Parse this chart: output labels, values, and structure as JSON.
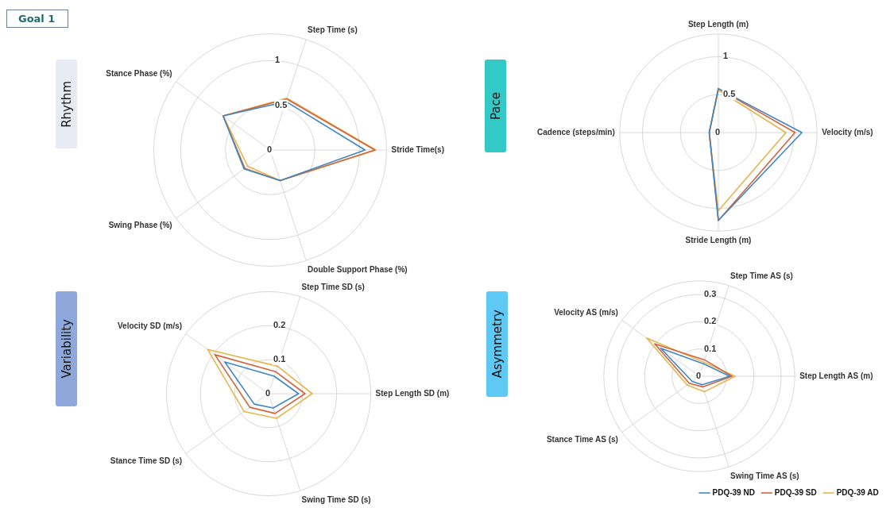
{
  "chart_data": [
    {
      "type": "radar",
      "title": "Rhythm",
      "annotations": [
        "Goal 1"
      ],
      "categories": [
        "Step Time (s)",
        "Stride Time(s)",
        "Double Support Phase (%)",
        "Swing Phase (%)",
        "Stance Phase (%)"
      ],
      "series": [
        {
          "color": "#3f87c4",
          "values": [
            0.57,
            1.06,
            0.36,
            0.36,
            0.65
          ]
        },
        {
          "color": "#d2643c",
          "values": [
            0.6,
            1.17,
            0.36,
            0.35,
            0.65
          ]
        },
        {
          "color": "#e9b44c",
          "values": [
            0.61,
            1.18,
            0.36,
            0.31,
            0.65
          ]
        }
      ],
      "ylim": [
        0,
        1.3
      ],
      "yticks": [
        0,
        0.5,
        1
      ],
      "grid": true,
      "marker": "none"
    },
    {
      "type": "radar",
      "title": "Pace",
      "categories": [
        "Step Length (m)",
        "Velocity (m/s)",
        "Stride Length (m)",
        "Cadence (steps/min)"
      ],
      "series": [
        {
          "color": "#3f87c4",
          "values": [
            0.58,
            1.1,
            1.16,
            0.12
          ]
        },
        {
          "color": "#d2643c",
          "values": [
            0.58,
            1.01,
            1.16,
            0.12
          ]
        },
        {
          "color": "#e9b44c",
          "values": [
            0.56,
            0.89,
            1.03,
            0.12
          ]
        }
      ],
      "ylim": [
        0,
        1.3
      ],
      "yticks": [
        0,
        0.5,
        1
      ],
      "grid": true,
      "marker": "none"
    },
    {
      "type": "radar",
      "title": "Variability",
      "categories": [
        "Step Time SD (s)",
        "Step Length SD (m)",
        "Swing Time SD (s)",
        "Stance Time SD (s)",
        "Velocity SD (m/s)"
      ],
      "series": [
        {
          "color": "#3f87c4",
          "values": [
            0.054,
            0.088,
            0.044,
            0.052,
            0.159
          ]
        },
        {
          "color": "#d2643c",
          "values": [
            0.068,
            0.107,
            0.061,
            0.068,
            0.195
          ]
        },
        {
          "color": "#e9b44c",
          "values": [
            0.085,
            0.128,
            0.076,
            0.089,
            0.221
          ]
        }
      ],
      "ylim": [
        0,
        0.3
      ],
      "yticks": [
        0,
        0.1,
        0.2
      ],
      "grid": true,
      "marker": "none"
    },
    {
      "type": "radar",
      "title": "Asymmetry",
      "categories": [
        "Step Time AS (s)",
        "Step Length AS (m)",
        "Swing Time AS (s)",
        "Stance Time AS (s)",
        "Velocity AS (m/s)"
      ],
      "series": [
        {
          "name": "PDQ-39 ND",
          "color": "#3f87c4",
          "values": [
            0.048,
            0.112,
            0.033,
            0.032,
            0.175
          ]
        },
        {
          "name": "PDQ-39 SD",
          "color": "#d2643c",
          "values": [
            0.063,
            0.12,
            0.041,
            0.045,
            0.202
          ]
        },
        {
          "name": "PDQ-39 AD",
          "color": "#e9b44c",
          "values": [
            0.054,
            0.131,
            0.06,
            0.055,
            0.239
          ]
        }
      ],
      "ylim": [
        0,
        0.35
      ],
      "yticks": [
        0,
        0.1,
        0.2,
        0.3
      ],
      "grid": true,
      "marker": "none",
      "legend": "bottom right"
    }
  ]
}
